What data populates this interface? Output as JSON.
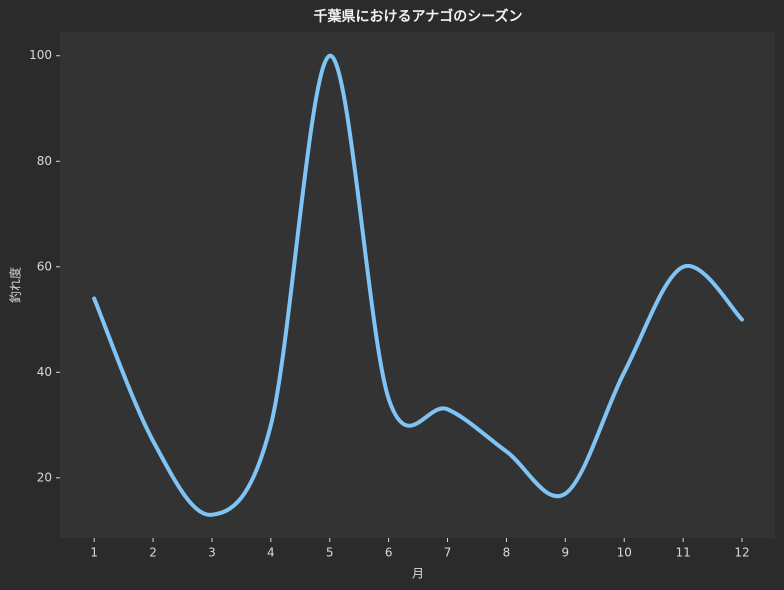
{
  "chart_data": {
    "type": "line",
    "title": "千葉県におけるアナゴのシーズン",
    "x_label": "月",
    "y_label": "釣れ度",
    "x": [
      1,
      2,
      3,
      4,
      5,
      6,
      7,
      8,
      9,
      10,
      11,
      12
    ],
    "series": [
      {
        "name": "釣れ度",
        "color": "#7fc4f4",
        "values": [
          54,
          27,
          13,
          30,
          100,
          35,
          33,
          25,
          17,
          40,
          60,
          50
        ]
      }
    ],
    "xlim": [
      0.42,
      12.56
    ],
    "ylim": [
      8.6,
      104.5
    ],
    "xticks": [
      1,
      2,
      3,
      4,
      5,
      6,
      7,
      8,
      9,
      10,
      11,
      12
    ],
    "yticks": [
      20,
      40,
      60,
      80,
      100
    ],
    "grid": false,
    "smooth": true
  }
}
